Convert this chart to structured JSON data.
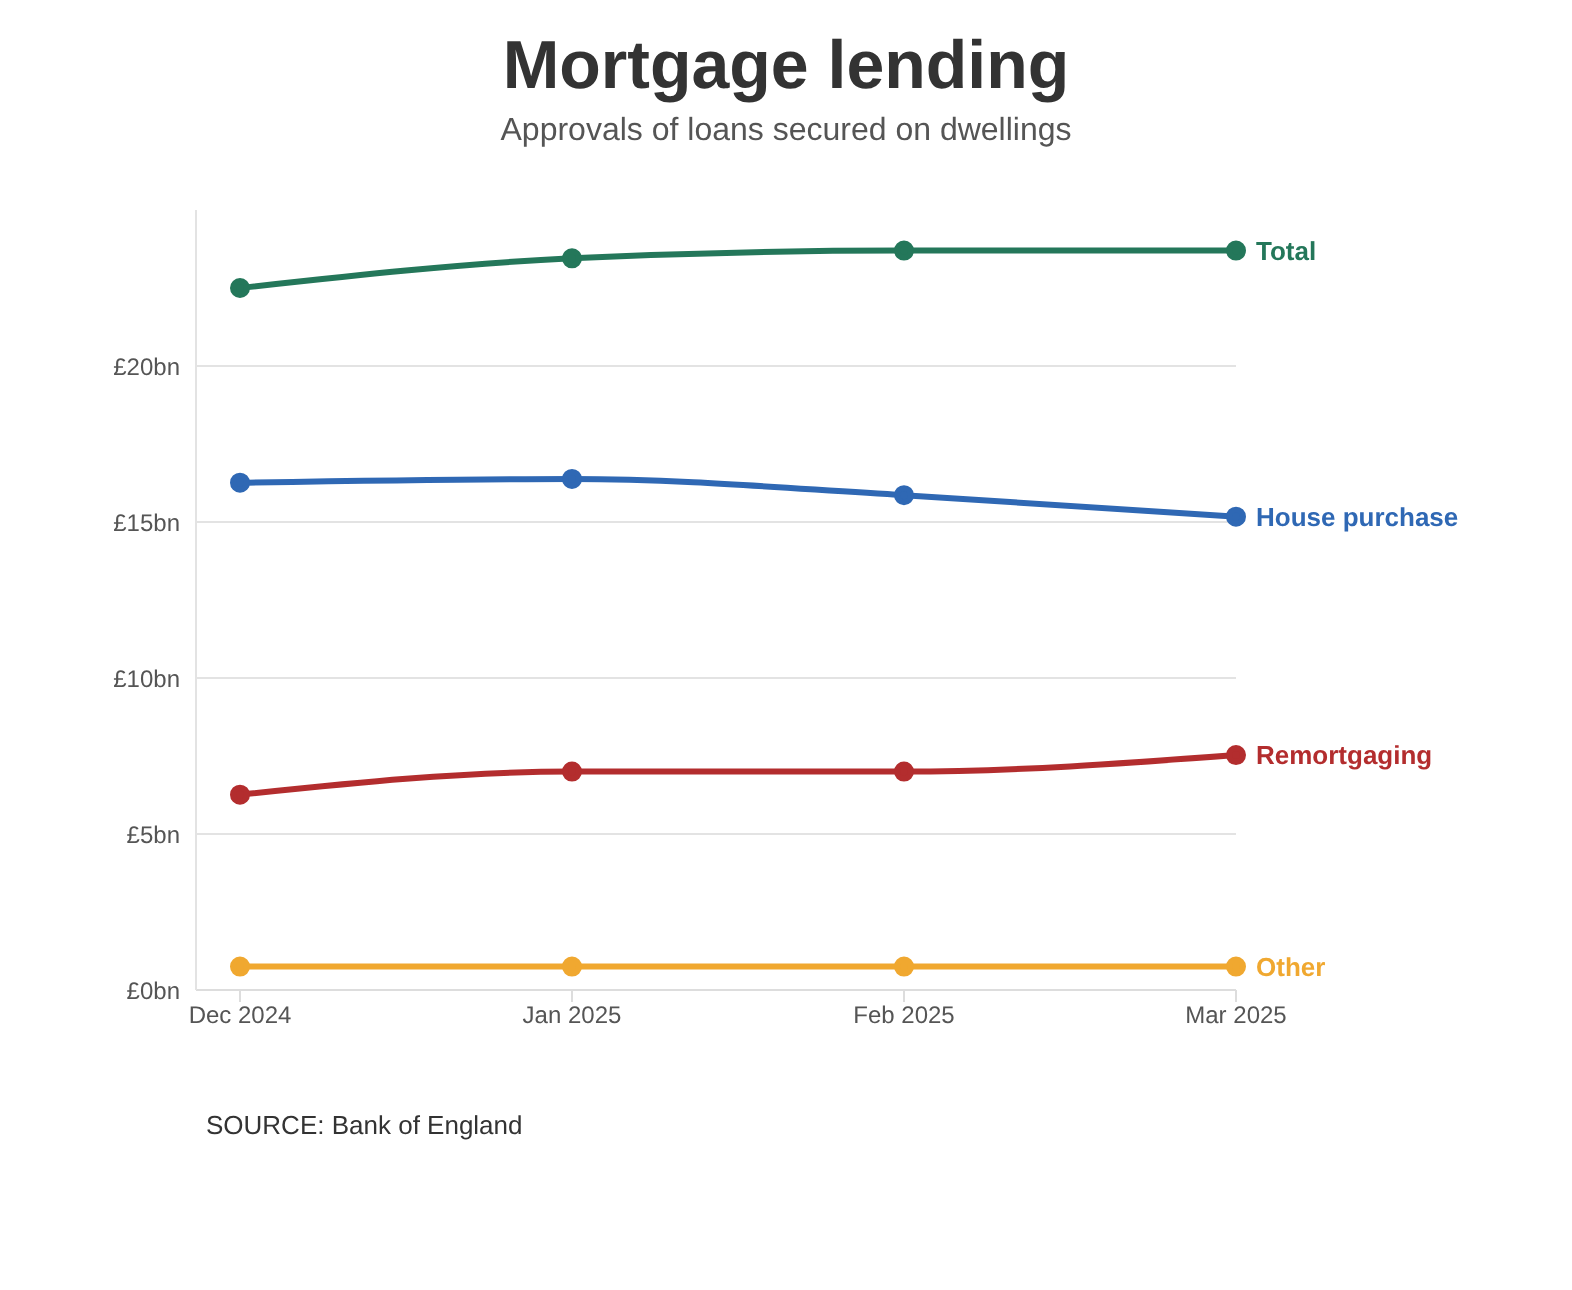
{
  "chart_data": {
    "type": "line",
    "title": "Mortgage lending",
    "subtitle": "Approvals of loans secured on dwellings",
    "categories": [
      "Dec 2024",
      "Jan 2025",
      "Feb 2025",
      "Mar 2025"
    ],
    "series": [
      {
        "name": "Total",
        "color": "#24775a",
        "values": [
          22.5,
          23.45,
          23.7,
          23.7
        ]
      },
      {
        "name": "House purchase",
        "color": "#2f68b4",
        "values": [
          16.26,
          16.38,
          15.86,
          15.17
        ]
      },
      {
        "name": "Remortgaging",
        "color": "#b32d2e",
        "values": [
          6.26,
          7.0,
          7.0,
          7.53
        ]
      },
      {
        "name": "Other",
        "color": "#f0a830",
        "values": [
          0.75,
          0.75,
          0.75,
          0.75
        ]
      }
    ],
    "ylim": [
      0,
      25
    ],
    "yticks": [
      {
        "value": 0,
        "label": "£0bn"
      },
      {
        "value": 5,
        "label": "£5bn"
      },
      {
        "value": 10,
        "label": "£10bn"
      },
      {
        "value": 15,
        "label": "£15bn"
      },
      {
        "value": 20,
        "label": "£20bn"
      }
    ],
    "grid": "y",
    "marker": "circle",
    "line_style": "solid",
    "annotations": [
      "SOURCE: Bank of England"
    ]
  }
}
